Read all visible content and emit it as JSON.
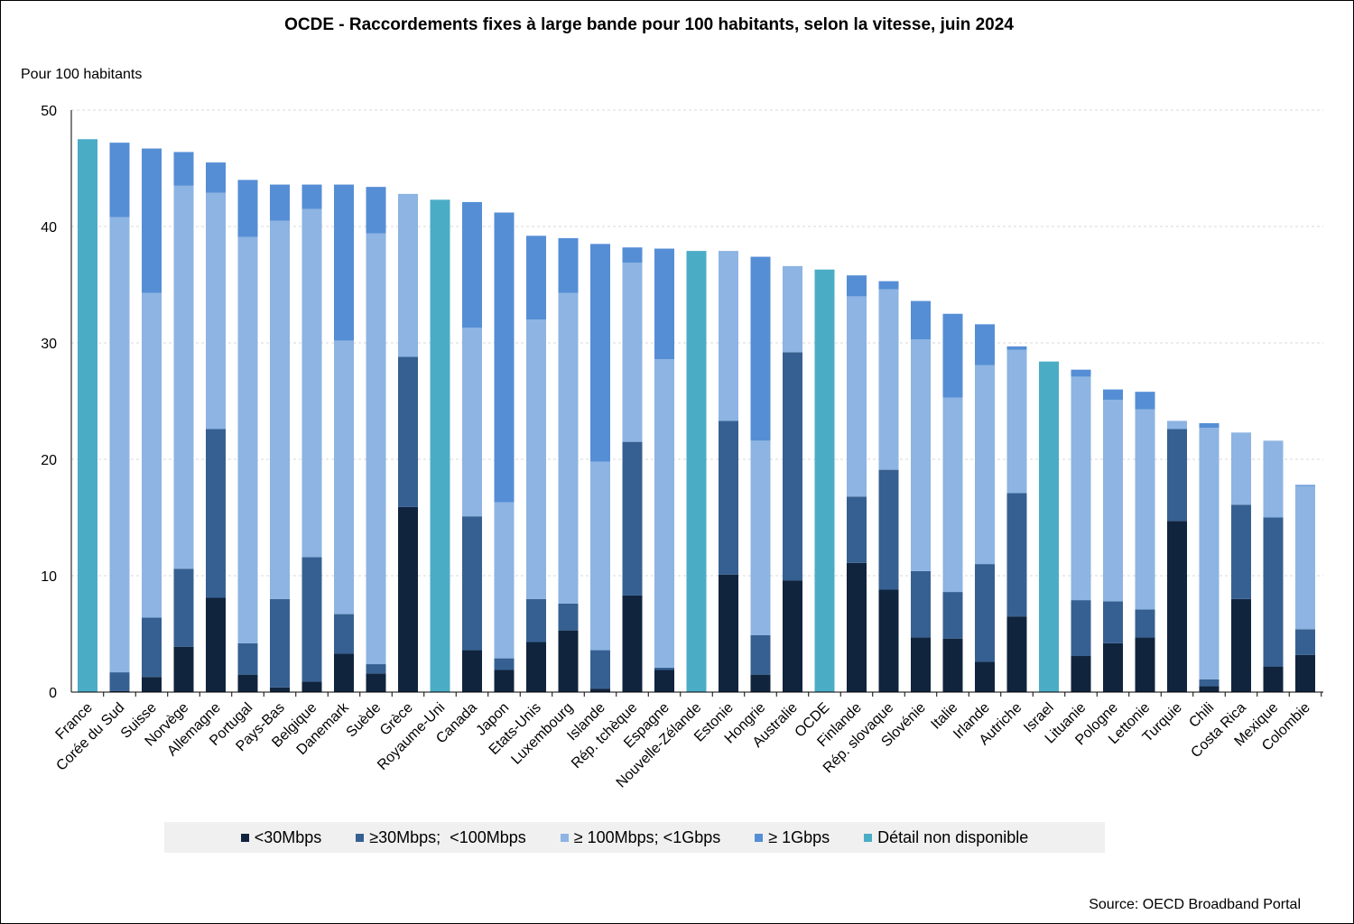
{
  "chart_data": {
    "type": "bar",
    "stacked": true,
    "title": "OCDE - Raccordements fixes à large bande pour 100 habitants, selon la vitesse, juin 2024",
    "ylabel": "Pour 100 habitants",
    "xlabel": "",
    "ylim": [
      0,
      50
    ],
    "yticks": [
      0,
      10,
      20,
      30,
      40,
      50
    ],
    "grid": true,
    "legend_position": "bottom",
    "source": "Source: OECD Broadband Portal",
    "categories": [
      "France",
      "Corée du Sud",
      "Suisse",
      "Norvège",
      "Allemagne",
      "Portugal",
      "Pays-Bas",
      "Belgique",
      "Danemark",
      "Suède",
      "Grèce",
      "Royaume-Uni",
      "Canada",
      "Japon",
      "Etats-Unis",
      "Luxembourg",
      "Islande",
      "Rép. tchèque",
      "Espagne",
      "Nouvelle-Zélande",
      "Estonie",
      "Hongrie",
      "Australie",
      "OCDE",
      "Finlande",
      "Rép. slovaque",
      "Slovénie",
      "Italie",
      "Irlande",
      "Autriche",
      "Israel",
      "Lituanie",
      "Pologne",
      "Lettonie",
      "Turquie",
      "Chili",
      "Costa Rica",
      "Mexique",
      "Colombie"
    ],
    "series": [
      {
        "name": "<30Mbps",
        "color": "#10243e",
        "values": [
          0,
          0.1,
          1.3,
          3.9,
          8.1,
          1.5,
          0.4,
          0.9,
          3.3,
          1.6,
          15.9,
          0,
          3.6,
          1.9,
          4.3,
          5.3,
          0.3,
          8.3,
          1.9,
          0,
          10.1,
          1.5,
          9.6,
          0,
          11.1,
          8.8,
          4.7,
          4.6,
          2.6,
          6.5,
          0,
          3.1,
          4.2,
          4.7,
          14.7,
          0.5,
          8.0,
          2.2,
          3.2
        ]
      },
      {
        "name": "≥30Mbps;  <100Mbps",
        "color": "#366092",
        "values": [
          0,
          1.6,
          5.1,
          6.7,
          14.5,
          2.7,
          7.6,
          10.7,
          3.4,
          0.8,
          12.9,
          0,
          11.5,
          1.0,
          3.7,
          2.3,
          3.3,
          13.2,
          0.2,
          0,
          13.2,
          3.4,
          19.6,
          0,
          5.7,
          10.3,
          5.7,
          4.0,
          8.4,
          10.6,
          0,
          4.8,
          3.6,
          2.4,
          7.9,
          0.6,
          8.1,
          12.8,
          2.2
        ]
      },
      {
        "name": "≥ 100Mbps; <1Gbps",
        "color": "#8db4e2",
        "values": [
          0,
          39.1,
          27.9,
          32.9,
          20.3,
          34.9,
          32.5,
          29.9,
          23.5,
          37.0,
          14.0,
          0,
          16.2,
          13.4,
          24.0,
          26.7,
          16.2,
          15.4,
          26.5,
          0,
          14.6,
          16.7,
          7.4,
          0,
          17.2,
          15.5,
          19.9,
          16.7,
          17.1,
          12.3,
          0,
          19.2,
          17.3,
          17.2,
          0.7,
          21.6,
          6.2,
          6.6,
          12.3
        ]
      },
      {
        "name": "≥ 1Gbps",
        "color": "#558ed5",
        "values": [
          0,
          6.4,
          12.4,
          2.9,
          2.6,
          4.9,
          3.1,
          2.1,
          13.4,
          4.0,
          0,
          0,
          10.8,
          24.9,
          7.2,
          4.7,
          18.7,
          1.3,
          9.5,
          0,
          0,
          15.8,
          0,
          0,
          1.8,
          0.7,
          3.3,
          7.2,
          3.5,
          0.3,
          0,
          0.6,
          0.9,
          1.5,
          0,
          0.4,
          0,
          0,
          0.1
        ]
      },
      {
        "name": "Détail non disponible",
        "color": "#4bacc6",
        "values": [
          47.5,
          0,
          0,
          0,
          0,
          0,
          0,
          0,
          0,
          0,
          0,
          42.3,
          0,
          0,
          0,
          0,
          0,
          0,
          0,
          37.9,
          0,
          0,
          0,
          36.3,
          0,
          0,
          0,
          0,
          0,
          0,
          28.4,
          0,
          0,
          0,
          0,
          0,
          0,
          0,
          0
        ]
      }
    ]
  }
}
